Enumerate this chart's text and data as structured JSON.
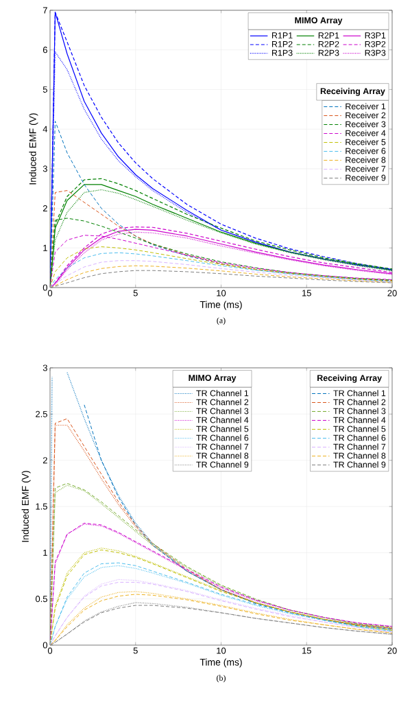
{
  "chart_data": [
    {
      "type": "line",
      "xlabel": "Time (ms)",
      "ylabel": "Induced EMF (V)",
      "xlim": [
        0,
        20
      ],
      "ylim": [
        0,
        7
      ],
      "xticks": [
        0,
        5,
        10,
        15,
        20
      ],
      "yticks": [
        0,
        1,
        2,
        3,
        4,
        5,
        6,
        7
      ],
      "grid": true,
      "legend": "top right",
      "legend_title": "MIMO Array",
      "annotations": [
        "(a)"
      ],
      "x": [
        0,
        0.3,
        1,
        2,
        3,
        4,
        5,
        6,
        8,
        10,
        12,
        14,
        16,
        18,
        20
      ],
      "series": [
        {
          "name": "R1P1",
          "color": "#0000ff",
          "line_style": "solid",
          "values": [
            0,
            6.95,
            5.9,
            4.7,
            3.9,
            3.3,
            2.85,
            2.5,
            1.95,
            1.45,
            1.15,
            0.9,
            0.72,
            0.57,
            0.45
          ]
        },
        {
          "name": "R2P1",
          "color": "#008000",
          "line_style": "solid",
          "values": [
            0,
            1.5,
            2.2,
            2.6,
            2.6,
            2.45,
            2.3,
            2.1,
            1.75,
            1.4,
            1.12,
            0.9,
            0.72,
            0.58,
            0.44
          ]
        },
        {
          "name": "R3P1",
          "color": "#cc00cc",
          "line_style": "solid",
          "values": [
            0,
            0.1,
            0.5,
            0.95,
            1.25,
            1.42,
            1.47,
            1.45,
            1.3,
            1.1,
            0.9,
            0.72,
            0.57,
            0.45,
            0.35
          ]
        },
        {
          "name": "R1P2",
          "color": "#0000ff",
          "line_style": "dashed",
          "values": [
            0,
            6.95,
            6.2,
            5.1,
            4.3,
            3.65,
            3.15,
            2.75,
            2.1,
            1.6,
            1.25,
            0.98,
            0.78,
            0.6,
            0.46
          ]
        },
        {
          "name": "R2P2",
          "color": "#008000",
          "line_style": "dashed",
          "values": [
            0,
            1.6,
            2.3,
            2.72,
            2.75,
            2.62,
            2.45,
            2.25,
            1.85,
            1.5,
            1.18,
            0.95,
            0.75,
            0.6,
            0.47
          ]
        },
        {
          "name": "R3P2",
          "color": "#cc00cc",
          "line_style": "dashed",
          "values": [
            0,
            0.12,
            0.55,
            1.0,
            1.35,
            1.5,
            1.53,
            1.52,
            1.37,
            1.17,
            0.97,
            0.78,
            0.62,
            0.5,
            0.38
          ]
        },
        {
          "name": "R1P3",
          "color": "#0000ff",
          "line_style": "dotted",
          "values": [
            0,
            5.95,
            5.5,
            4.5,
            3.75,
            3.2,
            2.8,
            2.45,
            1.9,
            1.45,
            1.15,
            0.9,
            0.72,
            0.56,
            0.43
          ]
        },
        {
          "name": "R2P3",
          "color": "#008000",
          "line_style": "dotted",
          "values": [
            0,
            1.2,
            1.9,
            2.4,
            2.47,
            2.38,
            2.22,
            2.05,
            1.7,
            1.38,
            1.1,
            0.88,
            0.7,
            0.55,
            0.42
          ]
        },
        {
          "name": "R3P3",
          "color": "#cc00cc",
          "line_style": "dotted",
          "values": [
            0,
            0.08,
            0.45,
            0.88,
            1.2,
            1.35,
            1.4,
            1.38,
            1.25,
            1.05,
            0.87,
            0.7,
            0.55,
            0.43,
            0.33
          ]
        }
      ]
    },
    {
      "type": "line",
      "xlim": [
        0,
        20
      ],
      "ylim": [
        0,
        7
      ],
      "xticks": [
        0,
        5,
        10,
        15,
        20
      ],
      "yticks": [
        0,
        1,
        2,
        3,
        4,
        5,
        6,
        7
      ],
      "tick_labels": false,
      "legend": "right",
      "legend_title": "Receiving Array",
      "x": [
        0,
        0.3,
        1,
        2,
        3,
        4,
        5,
        6,
        8,
        10,
        12,
        14,
        16,
        18,
        20
      ],
      "series": [
        {
          "name": "Receiver 1",
          "color": "#0072bd",
          "line_style": "dashed",
          "values": [
            0,
            4.2,
            3.4,
            2.6,
            2.0,
            1.6,
            1.3,
            1.08,
            0.8,
            0.6,
            0.45,
            0.35,
            0.27,
            0.21,
            0.17
          ]
        },
        {
          "name": "Receiver 2",
          "color": "#d95319",
          "line_style": "dashed",
          "values": [
            0,
            2.4,
            2.45,
            2.15,
            1.85,
            1.55,
            1.3,
            1.1,
            0.82,
            0.6,
            0.46,
            0.36,
            0.28,
            0.22,
            0.18
          ]
        },
        {
          "name": "Receiver 3",
          "color": "#008000",
          "line_style": "dashed",
          "values": [
            0,
            1.7,
            1.75,
            1.68,
            1.55,
            1.4,
            1.25,
            1.1,
            0.85,
            0.65,
            0.5,
            0.38,
            0.3,
            0.23,
            0.19
          ]
        },
        {
          "name": "Receiver 4",
          "color": "#cc00cc",
          "line_style": "dashed",
          "values": [
            0,
            0.9,
            1.2,
            1.32,
            1.3,
            1.22,
            1.12,
            1.02,
            0.82,
            0.63,
            0.49,
            0.38,
            0.3,
            0.24,
            0.2
          ]
        },
        {
          "name": "Receiver 5",
          "color": "#bfbf00",
          "line_style": "dashed",
          "values": [
            0,
            0.4,
            0.75,
            0.98,
            1.03,
            1.0,
            0.95,
            0.88,
            0.73,
            0.58,
            0.46,
            0.36,
            0.28,
            0.21,
            0.16
          ]
        },
        {
          "name": "Receiver 6",
          "color": "#4dbeee",
          "line_style": "dashed",
          "values": [
            0,
            0.2,
            0.5,
            0.75,
            0.86,
            0.88,
            0.85,
            0.8,
            0.68,
            0.55,
            0.44,
            0.35,
            0.27,
            0.2,
            0.15
          ]
        },
        {
          "name": "Receiver 8",
          "color": "#edb120",
          "line_style": "dashed",
          "values": [
            0,
            0.05,
            0.2,
            0.38,
            0.48,
            0.53,
            0.55,
            0.54,
            0.49,
            0.42,
            0.34,
            0.27,
            0.22,
            0.17,
            0.13
          ]
        },
        {
          "name": "Receiver 7",
          "color": "#d9b3ff",
          "line_style": "dashed",
          "values": [
            0,
            0.1,
            0.3,
            0.52,
            0.64,
            0.68,
            0.68,
            0.66,
            0.58,
            0.48,
            0.39,
            0.31,
            0.25,
            0.19,
            0.14
          ]
        },
        {
          "name": "Receiver 9",
          "color": "#808080",
          "line_style": "dashed",
          "values": [
            0,
            0.03,
            0.12,
            0.25,
            0.35,
            0.4,
            0.43,
            0.43,
            0.4,
            0.35,
            0.29,
            0.24,
            0.19,
            0.15,
            0.12
          ]
        }
      ]
    },
    {
      "type": "line",
      "xlabel": "Time (ms)",
      "ylabel": "Induced EMF (V)",
      "xlim": [
        0,
        20
      ],
      "ylim": [
        0,
        3
      ],
      "xticks": [
        0,
        5,
        10,
        15,
        20
      ],
      "yticks": [
        0,
        0.5,
        1,
        1.5,
        2,
        2.5,
        3
      ],
      "grid": true,
      "legend": "top right",
      "legend_title": "MIMO Array",
      "annotations": [
        "(b)"
      ],
      "x": [
        0,
        0.3,
        1,
        2,
        3,
        4,
        5,
        6,
        8,
        10,
        12,
        14,
        16,
        18,
        20
      ],
      "series": [
        {
          "name": "TR Channel 1",
          "color": "#0072bd",
          "line_style": "dotted",
          "x": [
            0,
            0.12,
            0.3,
            1,
            2,
            3,
            4,
            5,
            6,
            8,
            10,
            12,
            14,
            16,
            18,
            20
          ],
          "values": [
            0,
            2.9,
            null,
            2.95,
            2.45,
            2.0,
            1.62,
            1.32,
            1.1,
            0.8,
            0.6,
            0.46,
            0.36,
            0.28,
            0.22,
            0.175
          ]
        },
        {
          "name": "TR Channel 2",
          "color": "#d95319",
          "line_style": "dotted",
          "values": [
            0,
            2.38,
            2.38,
            2.1,
            1.8,
            1.52,
            1.28,
            1.08,
            0.8,
            0.6,
            0.46,
            0.36,
            0.28,
            0.22,
            0.185
          ]
        },
        {
          "name": "TR Channel 3",
          "color": "#77ac30",
          "line_style": "dotted",
          "values": [
            0,
            1.65,
            1.73,
            1.67,
            1.53,
            1.38,
            1.23,
            1.08,
            0.84,
            0.64,
            0.49,
            0.38,
            0.3,
            0.23,
            0.195
          ]
        },
        {
          "name": "TR Channel 4",
          "color": "#cc00cc",
          "line_style": "dotted",
          "values": [
            0,
            0.88,
            1.2,
            1.31,
            1.29,
            1.21,
            1.11,
            1.01,
            0.81,
            0.62,
            0.48,
            0.38,
            0.3,
            0.24,
            0.205
          ]
        },
        {
          "name": "TR Channel 5",
          "color": "#bfbf00",
          "line_style": "dotted",
          "values": [
            0,
            0.42,
            0.78,
            1.0,
            1.05,
            1.02,
            0.96,
            0.89,
            0.74,
            0.59,
            0.46,
            0.36,
            0.28,
            0.21,
            0.165
          ]
        },
        {
          "name": "TR Channel 6",
          "color": "#4dbeee",
          "line_style": "dotted",
          "values": [
            0,
            0.2,
            0.5,
            0.74,
            0.84,
            0.86,
            0.83,
            0.78,
            0.67,
            0.54,
            0.43,
            0.34,
            0.27,
            0.2,
            0.155
          ]
        },
        {
          "name": "TR Channel 7",
          "color": "#d9b3ff",
          "line_style": "dotted",
          "values": [
            0,
            0.1,
            0.3,
            0.53,
            0.66,
            0.71,
            0.7,
            0.67,
            0.59,
            0.49,
            0.4,
            0.32,
            0.25,
            0.19,
            0.145
          ]
        },
        {
          "name": "TR Channel 8",
          "color": "#edb120",
          "line_style": "dotted",
          "values": [
            0,
            0.05,
            0.22,
            0.4,
            0.52,
            0.57,
            0.58,
            0.56,
            0.5,
            0.43,
            0.35,
            0.28,
            0.22,
            0.17,
            0.135
          ]
        },
        {
          "name": "TR Channel 9",
          "color": "#808080",
          "line_style": "dotted",
          "values": [
            0,
            0.03,
            0.12,
            0.26,
            0.36,
            0.42,
            0.46,
            0.45,
            0.41,
            0.35,
            0.29,
            0.24,
            0.19,
            0.15,
            0.115
          ]
        }
      ]
    },
    {
      "type": "line",
      "xlim": [
        0,
        20
      ],
      "ylim": [
        0,
        3
      ],
      "xticks": [
        0,
        5,
        10,
        15,
        20
      ],
      "yticks": [
        0,
        0.5,
        1,
        1.5,
        2,
        2.5,
        3
      ],
      "tick_labels": false,
      "legend": "top right",
      "legend_title": "Receiving Array",
      "x": [
        0,
        0.3,
        1,
        2,
        3,
        4,
        5,
        6,
        8,
        10,
        12,
        14,
        16,
        18,
        20
      ],
      "series": [
        {
          "name": "TR Channel 1",
          "color": "#0072bd",
          "line_style": "dashed",
          "values": [
            null,
            null,
            null,
            2.6,
            2.0,
            1.6,
            1.3,
            1.08,
            0.8,
            0.6,
            0.45,
            0.35,
            0.27,
            0.21,
            0.17
          ]
        },
        {
          "name": "TR Channel 2",
          "color": "#d95319",
          "line_style": "dashed",
          "values": [
            0,
            2.4,
            2.45,
            2.15,
            1.85,
            1.55,
            1.3,
            1.1,
            0.82,
            0.6,
            0.46,
            0.36,
            0.28,
            0.22,
            0.18
          ]
        },
        {
          "name": "TR Channel 3",
          "color": "#77ac30",
          "line_style": "dashed",
          "values": [
            0,
            1.7,
            1.75,
            1.68,
            1.55,
            1.4,
            1.25,
            1.1,
            0.85,
            0.65,
            0.5,
            0.38,
            0.3,
            0.23,
            0.19
          ]
        },
        {
          "name": "TR Channel 4",
          "color": "#cc00cc",
          "line_style": "dashed",
          "values": [
            0,
            0.9,
            1.2,
            1.32,
            1.3,
            1.22,
            1.12,
            1.02,
            0.82,
            0.63,
            0.49,
            0.38,
            0.3,
            0.24,
            0.2
          ]
        },
        {
          "name": "TR Channel 5",
          "color": "#bfbf00",
          "line_style": "dashed",
          "values": [
            0,
            0.4,
            0.75,
            0.98,
            1.03,
            1.0,
            0.95,
            0.88,
            0.73,
            0.58,
            0.46,
            0.36,
            0.28,
            0.21,
            0.16
          ]
        },
        {
          "name": "TR Channel 6",
          "color": "#4dbeee",
          "line_style": "dashed",
          "values": [
            0,
            0.2,
            0.52,
            0.78,
            0.88,
            0.89,
            0.86,
            0.8,
            0.68,
            0.55,
            0.44,
            0.35,
            0.27,
            0.2,
            0.15
          ]
        },
        {
          "name": "TR Channel 7",
          "color": "#d9b3ff",
          "line_style": "dashed",
          "values": [
            0,
            0.1,
            0.3,
            0.52,
            0.64,
            0.68,
            0.68,
            0.66,
            0.58,
            0.48,
            0.39,
            0.31,
            0.25,
            0.19,
            0.14
          ]
        },
        {
          "name": "TR Channel 8",
          "color": "#edb120",
          "line_style": "dashed",
          "values": [
            0,
            0.05,
            0.2,
            0.38,
            0.48,
            0.53,
            0.55,
            0.54,
            0.49,
            0.42,
            0.34,
            0.27,
            0.22,
            0.17,
            0.13
          ]
        },
        {
          "name": "TR Channel 9",
          "color": "#808080",
          "line_style": "dashed",
          "values": [
            0,
            0.03,
            0.12,
            0.25,
            0.35,
            0.4,
            0.43,
            0.43,
            0.4,
            0.35,
            0.29,
            0.24,
            0.19,
            0.15,
            0.12
          ]
        }
      ]
    }
  ]
}
